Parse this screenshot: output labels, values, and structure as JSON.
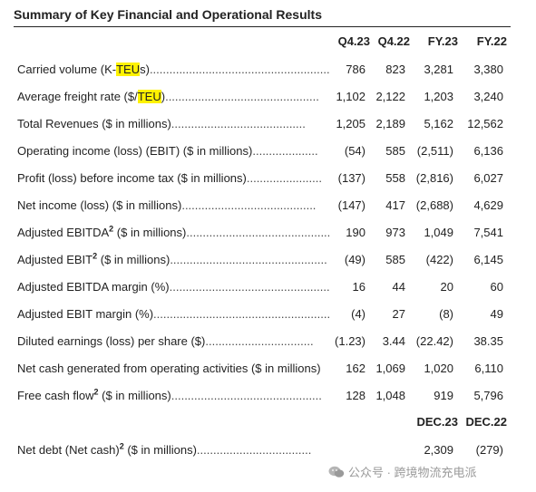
{
  "title": "Summary of Key Financial and Operational Results",
  "headers": [
    "Q4.23",
    "Q4.22",
    "FY.23",
    "FY.22"
  ],
  "rows": [
    {
      "pre": "Carried volume (K-",
      "hl": "TEU",
      "post": "s)",
      "sup": "",
      "unit": "",
      "dots": ".........................................................",
      "values": [
        "786",
        "823",
        "3,281",
        "3,380"
      ]
    },
    {
      "pre": "Average freight rate ($/",
      "hl": "TEU",
      "post": ")",
      "sup": "",
      "unit": "",
      "dots": "...............................................",
      "values": [
        "1,102",
        "2,122",
        "1,203",
        "3,240"
      ]
    },
    {
      "pre": "Total Revenues ($ in millions)",
      "hl": "",
      "post": "",
      "sup": "",
      "unit": "",
      "dots": ".........................................",
      "values": [
        "1,205",
        "2,189",
        "5,162",
        "12,562"
      ]
    },
    {
      "pre": "Operating income (loss) (EBIT) ($ in millions)",
      "hl": "",
      "post": "",
      "sup": "",
      "unit": "",
      "dots": "....................",
      "values": [
        "(54)",
        "585",
        "(2,511)",
        "6,136"
      ]
    },
    {
      "pre": "Profit (loss) before income tax ($ in millions)",
      "hl": "",
      "post": "",
      "sup": "",
      "unit": "",
      "dots": ".......................",
      "values": [
        "(137)",
        "558",
        "(2,816)",
        "6,027"
      ]
    },
    {
      "pre": "Net income (loss) ($ in millions)",
      "hl": "",
      "post": "",
      "sup": "",
      "unit": "",
      "dots": ".........................................",
      "values": [
        "(147)",
        "417",
        "(2,688)",
        "4,629"
      ]
    },
    {
      "pre": "Adjusted EBITDA",
      "hl": "",
      "post": "",
      "sup": "2",
      "unit": " ($ in millions)",
      "dots": "............................................",
      "values": [
        "190",
        "973",
        "1,049",
        "7,541"
      ]
    },
    {
      "pre": "Adjusted EBIT",
      "hl": "",
      "post": "",
      "sup": "2",
      "unit": " ($ in millions)",
      "dots": "................................................",
      "values": [
        "(49)",
        "585",
        "(422)",
        "6,145"
      ]
    },
    {
      "pre": "Adjusted EBITDA margin (%)",
      "hl": "",
      "post": "",
      "sup": "",
      "unit": "",
      "dots": "...................................................",
      "values": [
        "16",
        "44",
        "20",
        "60"
      ]
    },
    {
      "pre": "Adjusted EBIT margin (%)",
      "hl": "",
      "post": "",
      "sup": "",
      "unit": "",
      "dots": ".........................................................",
      "values": [
        "(4)",
        "27",
        "(8)",
        "49"
      ]
    },
    {
      "pre": "Diluted earnings (loss) per share ($)",
      "hl": "",
      "post": "",
      "sup": "",
      "unit": "",
      "dots": ".................................",
      "values": [
        "(1.23)",
        "3.44",
        "(22.42)",
        "38.35"
      ]
    },
    {
      "pre": "Net cash generated from operating activities ($ in millions)",
      "hl": "",
      "post": "",
      "sup": "",
      "unit": "",
      "dots": "",
      "values": [
        "162",
        "1,069",
        "1,020",
        "6,110"
      ]
    },
    {
      "pre": "Free cash flow",
      "hl": "",
      "post": "",
      "sup": "2",
      "unit": " ($ in millions)",
      "dots": "..............................................",
      "values": [
        "128",
        "1,048",
        "919",
        "5,796"
      ]
    }
  ],
  "sub_headers": [
    "DEC.23",
    "DEC.22"
  ],
  "net_debt": {
    "pre": "Net debt (Net cash)",
    "sup": "2",
    "unit": " ($ in millions)",
    "dots": "...................................",
    "values": [
      "2,309",
      "(279)"
    ]
  },
  "watermark": "公众号 · 跨境物流充电派"
}
